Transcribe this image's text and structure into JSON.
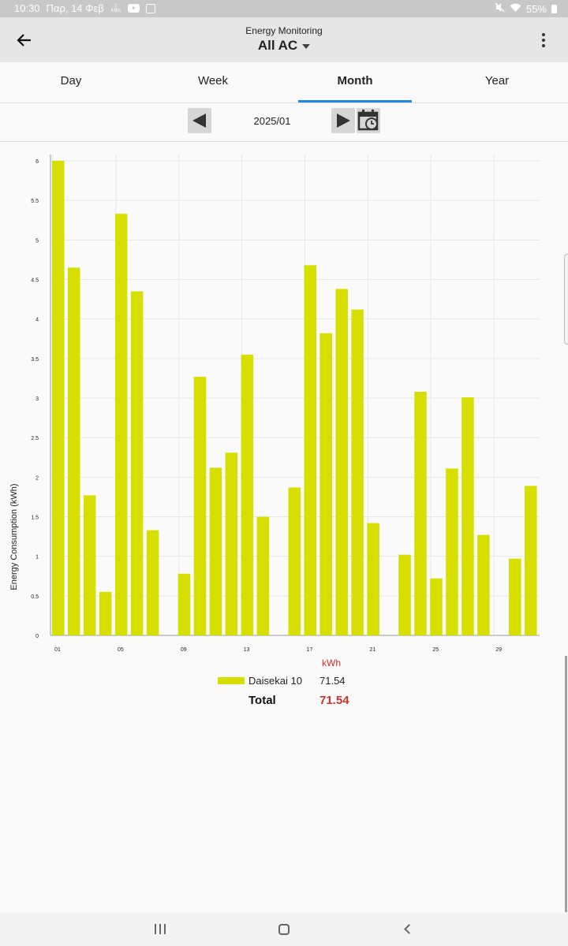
{
  "status_bar": {
    "time": "10:30",
    "date": "Παρ, 14 Φεβ",
    "net_speed_value": "0",
    "net_speed_unit": "KB/s",
    "battery": "55%",
    "icons": [
      "youtube-icon",
      "gallery-icon",
      "mute-icon",
      "wifi-icon",
      "battery-icon"
    ]
  },
  "app_bar": {
    "title": "Energy Monitoring",
    "subtitle": "All AC"
  },
  "tabs": [
    {
      "label": "Day",
      "active": false
    },
    {
      "label": "Week",
      "active": false
    },
    {
      "label": "Month",
      "active": true
    },
    {
      "label": "Year",
      "active": false
    }
  ],
  "date_nav": {
    "current": "2025/01"
  },
  "colors": {
    "bar": "#d6df00",
    "accent": "#1e88e5",
    "total": "#d32f2f"
  },
  "chart_data": {
    "type": "bar",
    "ylabel": "Energy Consumption (kWh)",
    "xlabel": "",
    "ylim": [
      0,
      6
    ],
    "yticks": [
      "0",
      "0.5",
      "1",
      "1.5",
      "2",
      "2.5",
      "3",
      "3.5",
      "4",
      "4.5",
      "5",
      "5.5",
      "6"
    ],
    "xtick_labels": [
      "01",
      "05",
      "09",
      "13",
      "17",
      "21",
      "25",
      "29"
    ],
    "categories": [
      "01",
      "02",
      "03",
      "04",
      "05",
      "06",
      "07",
      "08",
      "09",
      "10",
      "11",
      "12",
      "13",
      "14",
      "15",
      "16",
      "17",
      "18",
      "19",
      "20",
      "21",
      "22",
      "23",
      "24",
      "25",
      "26",
      "27",
      "28",
      "29",
      "30",
      "31"
    ],
    "series": [
      {
        "name": "Daisekai 10",
        "values": [
          6.0,
          4.65,
          1.77,
          0.55,
          5.33,
          4.35,
          1.33,
          0,
          0.78,
          3.27,
          2.12,
          2.31,
          3.55,
          1.5,
          0,
          1.87,
          4.68,
          3.82,
          4.38,
          4.12,
          1.42,
          0,
          1.02,
          3.08,
          0.72,
          2.11,
          3.01,
          1.27,
          0,
          0.97,
          1.89
        ]
      }
    ],
    "grid": true
  },
  "legend": {
    "unit": "kWh",
    "items": [
      {
        "name": "Daisekai 10",
        "value": "71.54"
      }
    ],
    "total_label": "Total",
    "total_value": "71.54"
  }
}
